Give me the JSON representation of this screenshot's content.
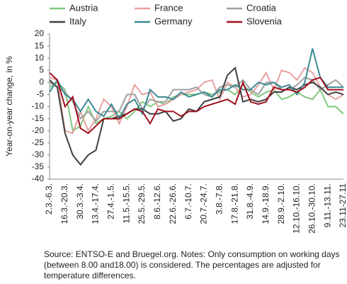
{
  "chart_data": {
    "type": "line",
    "ylabel": "Year-on-year change, in %",
    "note": "Source: ENTSO-E and Bruegel.org. Notes: Only consumption on working days (between 8.00 and18.00) is considered. The percentages are adjusted for temperature differences.",
    "categories": [
      "2.3.-6.3.",
      null,
      "16.3.-20.3.",
      null,
      "30.3.-3.4.",
      null,
      "13.4.-17.4.",
      null,
      "27.4.-1.5.",
      null,
      "11.5.-15.5.",
      null,
      "25.5.-29.5.",
      null,
      "8.6.-12.6.",
      null,
      "22.6.-26.6.",
      null,
      "6.7.-10.7.",
      null,
      "20.7.-24.7.",
      null,
      "3.8.-7.8.",
      null,
      "17.8.-21.8.",
      null,
      "31.8.-4.9.",
      null,
      "14.9.-18.9.",
      null,
      "28.9.-2.10.",
      null,
      "12.10.-16.10.",
      null,
      "26.10.-30.10.",
      null,
      "9.11.-13.11.",
      null,
      "23.11-27.11"
    ],
    "ylim": [
      -40,
      20
    ],
    "yticks": [
      20,
      15,
      10,
      5,
      0,
      -5,
      -10,
      -15,
      -20,
      -25,
      -30,
      -35,
      -40
    ],
    "grid": false,
    "series": [
      {
        "name": "Austria",
        "color": "#7fc97f",
        "values": [
          -2,
          0,
          -3,
          -20,
          -18,
          -10,
          -17,
          -15,
          -14,
          -12,
          -15,
          -12,
          -8,
          -10,
          -8,
          -9,
          -6,
          -5,
          -5,
          -5,
          -4,
          -5,
          -4,
          -3,
          -5,
          -1,
          -4,
          -6,
          -4,
          -3,
          -7,
          -6,
          -4,
          -6,
          -7,
          -3,
          -10,
          -10,
          -13
        ]
      },
      {
        "name": "France",
        "color": "#e8a0a0",
        "values": [
          2,
          1,
          -20,
          -21,
          -12,
          -20,
          -15,
          -7,
          -10,
          -17,
          -10,
          -1,
          -5,
          -4,
          -10,
          -9,
          -7,
          -5,
          -4,
          -3,
          0,
          1,
          -7,
          0,
          -2,
          -6,
          -5,
          -1,
          4,
          -3,
          5,
          4,
          1,
          6,
          4,
          -2,
          -5,
          -7,
          -5
        ]
      },
      {
        "name": "Croatia",
        "color": "#a0a0a0",
        "values": [
          0,
          -2,
          -4,
          -8,
          -15,
          -12,
          -16,
          -12,
          -12,
          -12,
          -5,
          -5,
          -11,
          -7,
          -8,
          -8,
          -3,
          -3,
          -3,
          -2,
          -5,
          -6,
          -2,
          -1,
          -2,
          1,
          -3,
          -5,
          0,
          0,
          -3,
          -3,
          -1,
          2,
          1,
          -3,
          -1,
          1,
          -2
        ]
      },
      {
        "name": "Italy",
        "color": "#404040",
        "values": [
          1,
          -2,
          -21,
          -30,
          -34,
          -30,
          -28,
          -15,
          -15,
          -14,
          -13,
          -11,
          -11,
          -13,
          -13,
          -12,
          -16,
          -15,
          -11,
          -12,
          -8,
          -7,
          -6,
          3,
          6,
          -8,
          -7,
          -8,
          -7,
          -4,
          -4,
          -2,
          -3,
          -1,
          0,
          -2,
          -5,
          -4,
          -5
        ]
      },
      {
        "name": "Germany",
        "color": "#3a8a94",
        "values": [
          -4,
          1,
          -5,
          -7,
          -12,
          -7,
          -12,
          -14,
          -9,
          -15,
          -9,
          -7,
          -13,
          -3,
          -6,
          -6,
          -7,
          -4,
          -6,
          -5,
          -4,
          -6,
          -3,
          -3,
          -1,
          -3,
          -3,
          0,
          -1,
          0,
          -2,
          -1,
          -5,
          0,
          14,
          2,
          -2,
          -2,
          -2
        ]
      },
      {
        "name": "Slovenia",
        "color": "#a0101e",
        "values": [
          4,
          1,
          -10,
          -6,
          -19,
          -21,
          -18,
          -15,
          -15,
          -15,
          -13,
          -11,
          -12,
          -17,
          -11,
          -12,
          -12,
          -14,
          -12,
          -12,
          -10,
          -9,
          -8,
          -7,
          -9,
          0,
          -8,
          -9,
          -8,
          -2,
          -3,
          -3,
          -4,
          -2,
          1,
          2,
          -3,
          -3,
          -3
        ]
      }
    ]
  }
}
